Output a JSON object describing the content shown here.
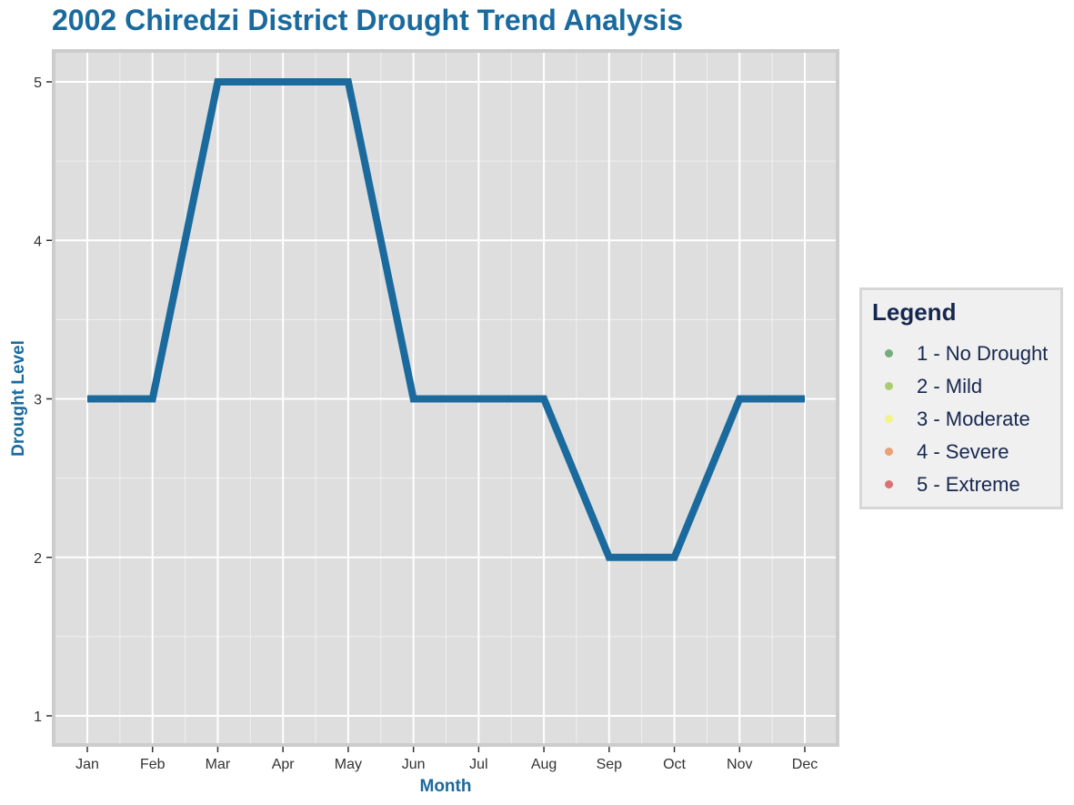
{
  "chart_data": {
    "type": "line",
    "title": "2002 Chiredzi District Drought Trend Analysis",
    "xlabel": "Month",
    "ylabel": "Drought Level",
    "categories": [
      "Jan",
      "Feb",
      "Mar",
      "Apr",
      "May",
      "Jun",
      "Jul",
      "Aug",
      "Sep",
      "Oct",
      "Nov",
      "Dec"
    ],
    "values": [
      3,
      3,
      5,
      5,
      5,
      3,
      3,
      3,
      2,
      2,
      3,
      3
    ],
    "yticks": [
      "1",
      "2",
      "3",
      "4",
      "5"
    ],
    "ylim": [
      1,
      5
    ],
    "grid": true,
    "line_color": "#1a6a9e",
    "panel_color": "#dedede",
    "legend": {
      "title": "Legend",
      "placement": "right",
      "items": [
        {
          "label": "1 - No Drought",
          "color": "#3f8f4f"
        },
        {
          "label": "2 - Mild",
          "color": "#8dbd3c"
        },
        {
          "label": "3 - Moderate",
          "color": "#f4f45c"
        },
        {
          "label": "4 - Severe",
          "color": "#e77d45"
        },
        {
          "label": "5 - Extreme",
          "color": "#d23b3b"
        }
      ]
    }
  }
}
